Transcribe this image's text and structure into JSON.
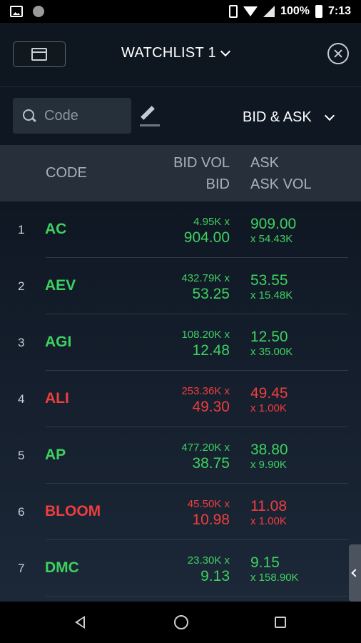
{
  "status_bar": {
    "battery": "100%",
    "time": "7:13"
  },
  "header": {
    "title": "WATCHLIST 1"
  },
  "search": {
    "placeholder": "Code",
    "mode": "BID & ASK"
  },
  "columns": {
    "code": "CODE",
    "bid_vol": "BID VOL",
    "bid": "BID",
    "ask": "ASK",
    "ask_vol": "ASK VOL"
  },
  "rows": [
    {
      "rank": "1",
      "code": "AC",
      "bid_vol": "4.95K x",
      "bid": "904.00",
      "ask": "909.00",
      "ask_vol": "x 54.43K",
      "direction": "up"
    },
    {
      "rank": "2",
      "code": "AEV",
      "bid_vol": "432.79K x",
      "bid": "53.25",
      "ask": "53.55",
      "ask_vol": "x 15.48K",
      "direction": "up"
    },
    {
      "rank": "3",
      "code": "AGI",
      "bid_vol": "108.20K x",
      "bid": "12.48",
      "ask": "12.50",
      "ask_vol": "x 35.00K",
      "direction": "up"
    },
    {
      "rank": "4",
      "code": "ALI",
      "bid_vol": "253.36K x",
      "bid": "49.30",
      "ask": "49.45",
      "ask_vol": "x 1.00K",
      "direction": "down"
    },
    {
      "rank": "5",
      "code": "AP",
      "bid_vol": "477.20K x",
      "bid": "38.75",
      "ask": "38.80",
      "ask_vol": "x 9.90K",
      "direction": "up"
    },
    {
      "rank": "6",
      "code": "BLOOM",
      "bid_vol": "45.50K x",
      "bid": "10.98",
      "ask": "11.08",
      "ask_vol": "x 1.00K",
      "direction": "down"
    },
    {
      "rank": "7",
      "code": "DMC",
      "bid_vol": "23.30K x",
      "bid": "9.13",
      "ask": "9.15",
      "ask_vol": "x 158.90K",
      "direction": "up"
    }
  ],
  "colors": {
    "up": "#3ed160",
    "down": "#ef3e3e",
    "background": "#0f1723",
    "header_row": "#262f3a"
  },
  "icons": [
    "image-icon",
    "notification-dot-icon",
    "vibrate-icon",
    "wifi-icon",
    "signal-icon",
    "battery-icon",
    "card-view-icon",
    "list-view-icon",
    "chevron-down-icon",
    "close-icon",
    "search-icon",
    "edit-icon",
    "back-icon",
    "home-icon",
    "recents-icon"
  ]
}
